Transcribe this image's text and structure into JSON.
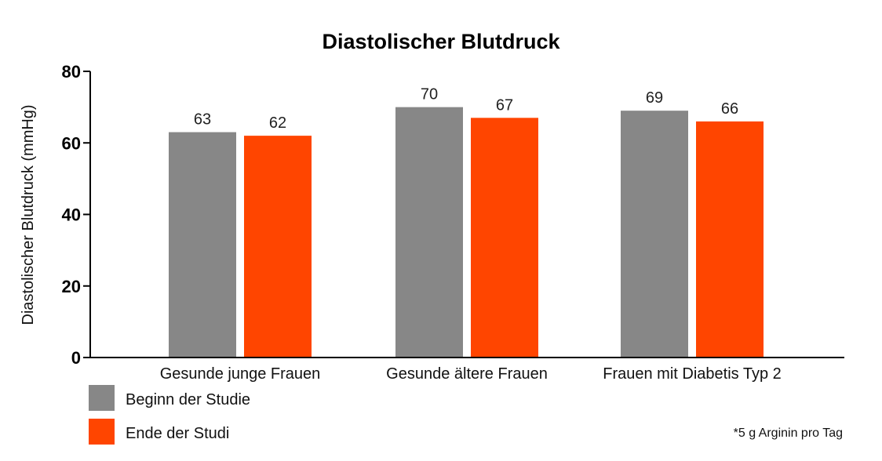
{
  "chart_data": {
    "type": "bar",
    "title": "Diastolischer Blutdruck",
    "xlabel": "",
    "ylabel": "Diastolischer Blutdruck (mmHg)",
    "ylim": [
      0,
      80
    ],
    "yticks": [
      0,
      20,
      40,
      60,
      80
    ],
    "grid": false,
    "legend_position": "bottom-left",
    "categories": [
      "Gesunde junge Frauen",
      "Gesunde ältere Frauen",
      "Frauen mit Diabetis Typ 2"
    ],
    "series": [
      {
        "name": "Beginn der Studie",
        "color": "#878787",
        "values": [
          63,
          70,
          69
        ]
      },
      {
        "name": "Ende der Studi",
        "color": "#ff4500",
        "values": [
          62,
          67,
          66
        ]
      }
    ],
    "footnote": "*5 g Arginin pro Tag"
  }
}
